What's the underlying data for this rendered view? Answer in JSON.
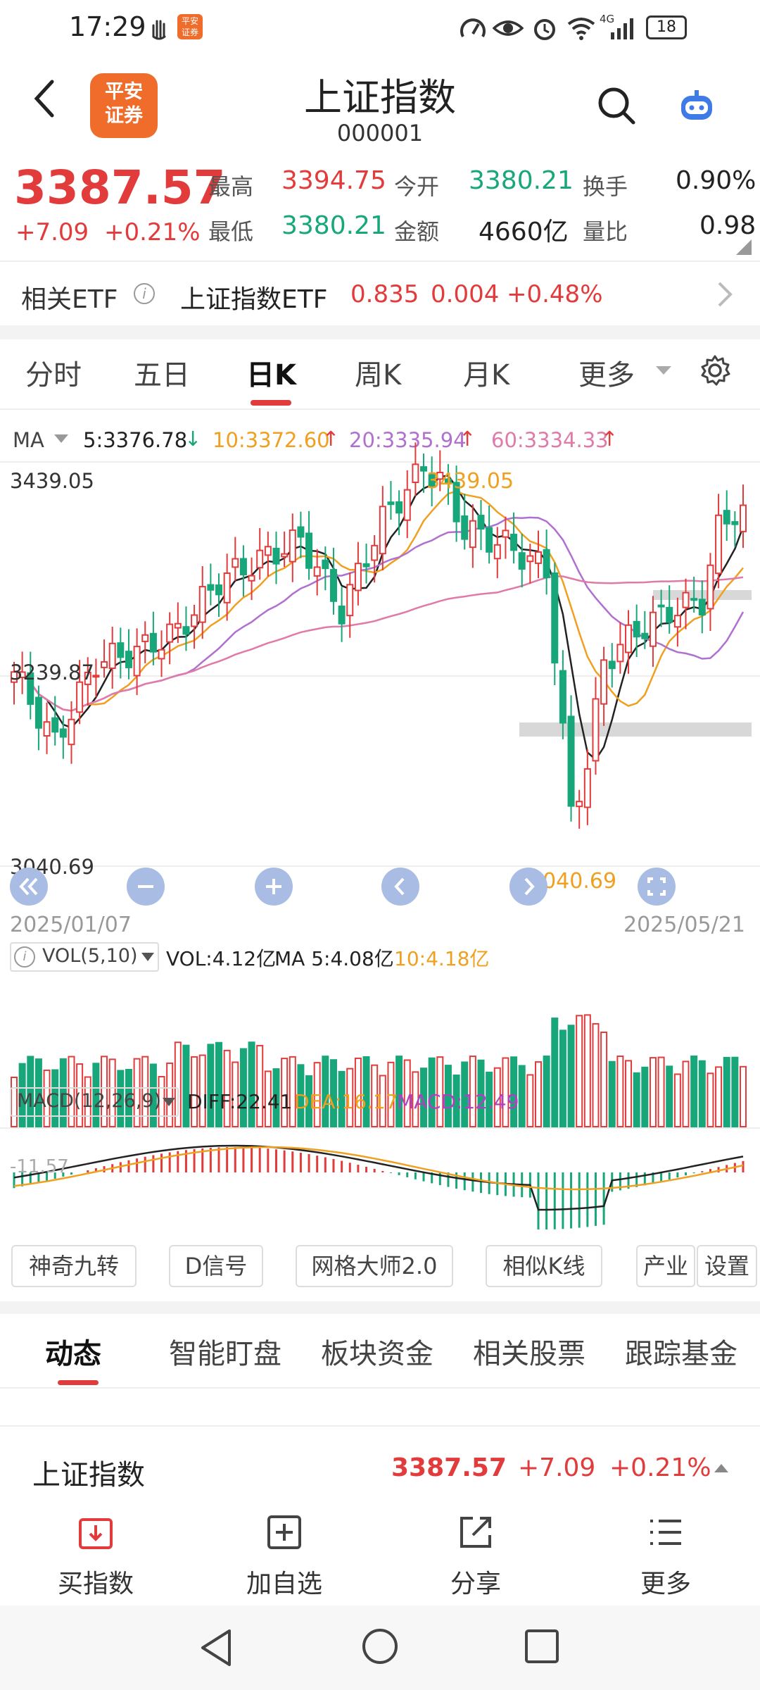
{
  "status": {
    "time": "17:29",
    "network": "4G",
    "battery": "18"
  },
  "header": {
    "title": "上证指数",
    "code": "000001",
    "logo_line1": "平安",
    "logo_line2": "证券"
  },
  "quote": {
    "price": "3387.57",
    "change": "+7.09",
    "change_pct": "+0.21%",
    "high_label": "最高",
    "high": "3394.75",
    "low_label": "最低",
    "low": "3380.21",
    "open_label": "今开",
    "open": "3380.21",
    "amount_label": "金额",
    "amount": "4660亿",
    "turnover_label": "换手",
    "turnover": "0.90%",
    "vol_ratio_label": "量比",
    "vol_ratio": "0.98"
  },
  "etf": {
    "label": "相关ETF",
    "name": "上证指数ETF",
    "price": "0.835",
    "change": "0.004",
    "pct": "+0.48%"
  },
  "tabs": [
    "分时",
    "五日",
    "日K",
    "周K",
    "月K",
    "更多"
  ],
  "active_tab": "日K",
  "ma": {
    "label": "MA",
    "ma5": "5:3376.78",
    "ma10": "10:3372.60",
    "ma20": "20:3335.94",
    "ma60": "60:3334.33"
  },
  "kline": {
    "y_high": "3439.05",
    "y_mid": "3239.87",
    "y_low": "3040.69",
    "max_mark": "3439.05",
    "min_mark": "3040.69",
    "date_start": "2025/01/07",
    "date_end": "2025/05/21"
  },
  "vol": {
    "label": "VOL(5,10)",
    "value": "VOL:4.12亿",
    "ma5": "MA 5:4.08亿",
    "ma10": "10:4.18亿"
  },
  "macd": {
    "label": "MACD(12,26,9)",
    "diff": "DIFF:22.41",
    "dea": "DEA:16.17",
    "macd": "MACD:12.49",
    "axis": "-11.57"
  },
  "tools": [
    "神奇九转",
    "D信号",
    "网格大师2.0",
    "相似K线",
    "产业",
    "设置"
  ],
  "bottom_tabs": [
    "动态",
    "智能盯盘",
    "板块资金",
    "相关股票",
    "跟踪基金"
  ],
  "summary": {
    "name": "上证指数",
    "price": "3387.57",
    "change": "+7.09",
    "pct": "+0.21%"
  },
  "actions": [
    "买指数",
    "加自选",
    "分享",
    "更多"
  ],
  "colors": {
    "up": "#e23b3b",
    "down": "#17a77a",
    "ma5": "#222222",
    "ma10": "#f0a020",
    "ma20": "#b070d0",
    "ma60": "#e07aa8",
    "brand": "#ef6c2b"
  }
}
